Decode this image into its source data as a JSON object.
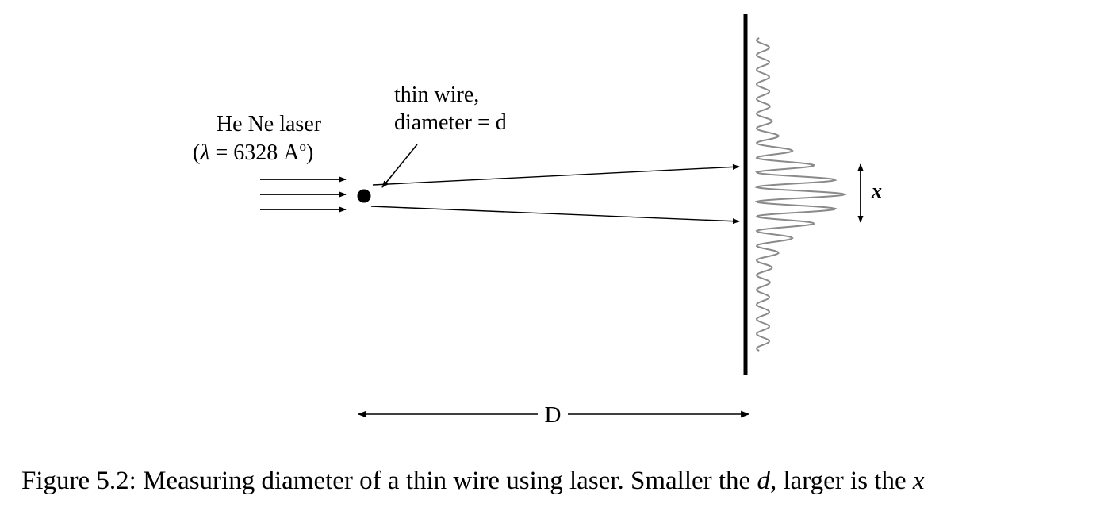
{
  "labels": {
    "laser_name": "He Ne laser",
    "laser_wavelength_open": "(",
    "laser_wavelength_symbol": "λ",
    "laser_wavelength_value": " = 6328 A",
    "laser_wavelength_degree": "o",
    "laser_wavelength_close": ")",
    "wire_line1": "thin wire,",
    "wire_line2": "diameter = d",
    "fringe_width": "x",
    "distance": "D"
  },
  "caption": {
    "prefix": "Figure 5.2: Measuring diameter of a thin wire using laser. Smaller the ",
    "d": "d",
    "middle": ", larger is the ",
    "x": "x"
  },
  "colors": {
    "ink": "#000000",
    "pattern": "#8a8a8a"
  }
}
